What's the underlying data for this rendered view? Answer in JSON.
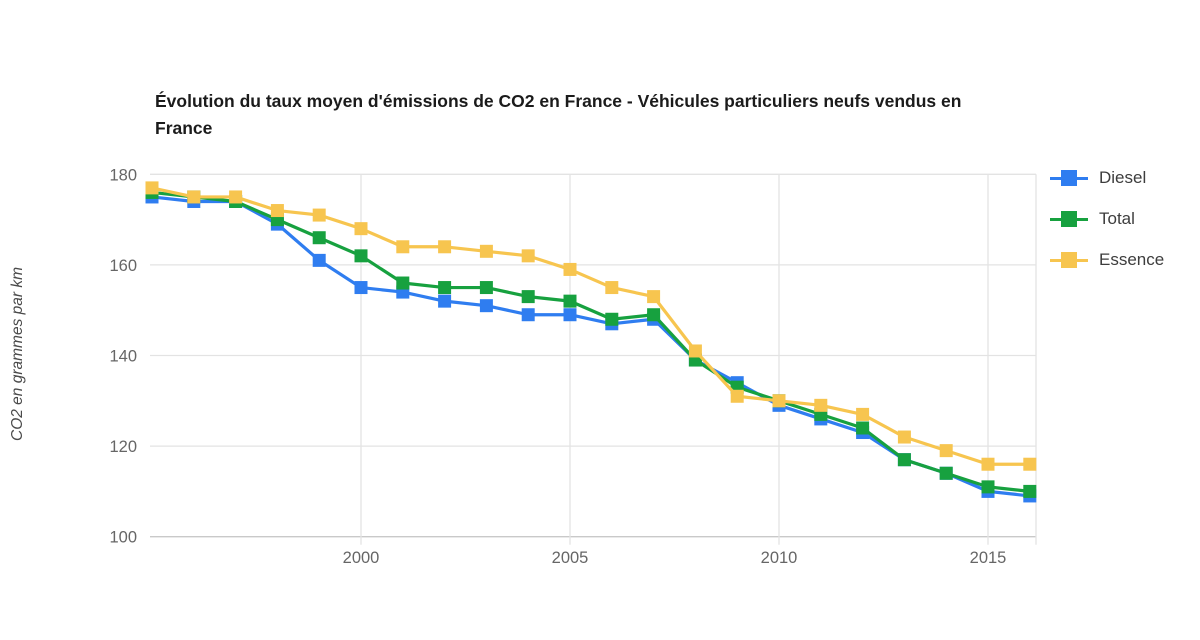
{
  "window": {
    "background": "#ffffff"
  },
  "chart_data": {
    "type": "line",
    "title": "Évolution du taux moyen d'émissions de CO2 en France - Véhicules particuliers neufs vendus en France",
    "xlabel": "",
    "ylabel": "CO2 en grammes par km",
    "x": [
      1995,
      1996,
      1997,
      1998,
      1999,
      2000,
      2001,
      2002,
      2003,
      2004,
      2005,
      2006,
      2007,
      2008,
      2009,
      2010,
      2011,
      2012,
      2013,
      2014,
      2015,
      2016
    ],
    "series": [
      {
        "name": "Diesel",
        "color": "#2f7df0",
        "values": [
          175,
          174,
          174,
          169,
          161,
          155,
          154,
          152,
          151,
          149,
          149,
          147,
          148,
          139,
          134,
          129,
          126,
          123,
          117,
          114,
          110,
          109
        ]
      },
      {
        "name": "Total",
        "color": "#17a13f",
        "values": [
          176,
          175,
          174,
          170,
          166,
          162,
          156,
          155,
          155,
          153,
          152,
          148,
          149,
          139,
          133,
          130,
          127,
          124,
          117,
          114,
          111,
          110
        ]
      },
      {
        "name": "Essence",
        "color": "#f7c54f",
        "values": [
          177,
          175,
          175,
          172,
          171,
          168,
          164,
          164,
          163,
          162,
          159,
          155,
          153,
          141,
          131,
          130,
          129,
          127,
          122,
          119,
          116,
          116
        ]
      }
    ],
    "ylim": [
      100,
      180
    ],
    "yticks": [
      100,
      120,
      140,
      160,
      180
    ],
    "ytick_labels": [
      "100",
      "120",
      "140",
      "160",
      "180"
    ],
    "xticks": [
      2000,
      2005,
      2010,
      2015
    ],
    "xtick_labels": [
      "2000",
      "2005",
      "2010",
      "2015"
    ],
    "grid": true,
    "legend_position": "right",
    "marker": "square"
  },
  "colors": {
    "gridline": "#e3e3e3",
    "axis_line": "#c9c9c9",
    "tick_label": "#666666",
    "title_text": "#1b1b1b",
    "legend_text": "#3d3d3d"
  }
}
